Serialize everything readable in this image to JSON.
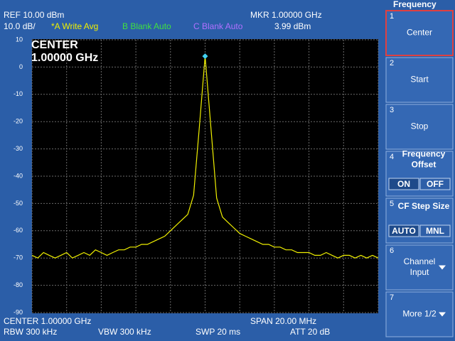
{
  "header": {
    "ref": "REF  10.00 dBm",
    "marker_freq": "MKR 1.00000 GHz",
    "scale": "10.0 dB/",
    "trace_a": "*A Write Avg",
    "trace_b": "B Blank Auto",
    "trace_c": "C Blank Auto",
    "center": "CENTER 1.00000 GHz",
    "span": "SPAN 20.00 MHz",
    "rbw": "RBW  300 kHz",
    "vbw": "VBW  300 kHz",
    "swp": "SWP  20 ms",
    "att": "ATT  20 dB"
  },
  "plot": {
    "overlay": [
      "CENTER",
      "1.00000 GHz"
    ],
    "ylim": [
      -90,
      10
    ],
    "yticks": [
      10,
      0,
      -10,
      -20,
      -30,
      -40,
      -50,
      -60,
      -70,
      -80,
      -90
    ],
    "marker": {
      "value": 3.99,
      "label": "3.99 dBm"
    },
    "trace_color": "#f0f000",
    "trace": [
      -69,
      -70,
      -68,
      -69,
      -70,
      -69,
      -68,
      -70,
      -69,
      -68,
      -69,
      -67,
      -68,
      -69,
      -68,
      -67,
      -67,
      -66,
      -66,
      -65,
      -65,
      -64,
      -63,
      -62,
      -60,
      -58,
      -56,
      -54,
      -47,
      -22,
      4,
      -22,
      -48,
      -55,
      -57,
      -59,
      -61,
      -62,
      -63,
      -64,
      -65,
      -65,
      -66,
      -66,
      -67,
      -67,
      -68,
      -68,
      -68,
      -69,
      -69,
      -68,
      -69,
      -70,
      -69,
      -69,
      -70,
      -69,
      -70,
      -69,
      -70
    ]
  },
  "softkeys": {
    "title": "Frequency",
    "keys": [
      {
        "number": "1",
        "lines": [
          "Center"
        ]
      },
      {
        "number": "2",
        "lines": [
          "Start"
        ]
      },
      {
        "number": "3",
        "lines": [
          "Stop"
        ]
      },
      {
        "number": "4",
        "lines": [
          "Frequency",
          "Offset"
        ],
        "options": [
          "ON",
          "OFF"
        ]
      },
      {
        "number": "5",
        "lines": [
          "CF Step Size"
        ],
        "options": [
          "AUTO",
          "MNL"
        ]
      },
      {
        "number": "6",
        "lines": [
          "Channel",
          "Input"
        ]
      },
      {
        "number": "7",
        "lines": [
          "More 1/2"
        ]
      }
    ]
  }
}
